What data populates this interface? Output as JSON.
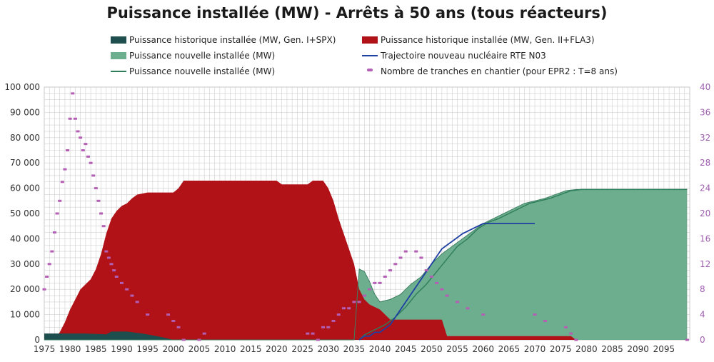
{
  "chart_data": {
    "type": "area",
    "title": "Puissance installée (MW) - Arrêts à 50 ans (tous réacteurs)",
    "legend_position": "top",
    "x_ticks": [
      1975,
      1980,
      1985,
      1990,
      1995,
      2000,
      2005,
      2010,
      2015,
      2020,
      2025,
      2030,
      2035,
      2040,
      2045,
      2050,
      2055,
      2060,
      2065,
      2070,
      2075,
      2080,
      2085,
      2090,
      2095
    ],
    "x_range": [
      1975,
      2100
    ],
    "y_left": {
      "range": [
        0,
        100000
      ],
      "ticks": [
        "0",
        "10 000",
        "20 000",
        "30 000",
        "40 000",
        "50 000",
        "60 000",
        "70 000",
        "80 000",
        "90 000",
        "100 000"
      ]
    },
    "y_right": {
      "range": [
        0,
        40
      ],
      "ticks": [
        "0",
        "4",
        "8",
        "12",
        "16",
        "20",
        "24",
        "28",
        "32",
        "36",
        "40"
      ]
    },
    "grid": true,
    "series": [
      {
        "name": "Puissance historique installée (MW, Gen. I+SPX)",
        "kind": "area",
        "axis": "left",
        "color": "#1f4e4e",
        "points": [
          [
            1975,
            2500
          ],
          [
            1983,
            2500
          ],
          [
            1987,
            2200
          ],
          [
            1988,
            3300
          ],
          [
            1991,
            3300
          ],
          [
            1994,
            2500
          ],
          [
            1996,
            1800
          ],
          [
            1998,
            1000
          ],
          [
            1999,
            500
          ],
          [
            2000,
            0
          ]
        ]
      },
      {
        "name": "Puissance historique installée (MW, Gen. II+FLA3)",
        "kind": "area",
        "axis": "left",
        "color": "#b01218",
        "points": [
          [
            1975,
            0
          ],
          [
            1977,
            500
          ],
          [
            1978,
            3000
          ],
          [
            1979,
            7000
          ],
          [
            1980,
            12000
          ],
          [
            1981,
            16000
          ],
          [
            1982,
            20000
          ],
          [
            1983,
            22000
          ],
          [
            1984,
            24000
          ],
          [
            1985,
            28000
          ],
          [
            1986,
            34000
          ],
          [
            1987,
            42000
          ],
          [
            1988,
            48000
          ],
          [
            1989,
            51000
          ],
          [
            1990,
            53000
          ],
          [
            1991,
            54000
          ],
          [
            1992,
            56000
          ],
          [
            1993,
            57500
          ],
          [
            1995,
            58300
          ],
          [
            2000,
            58300
          ],
          [
            2001,
            60000
          ],
          [
            2002,
            63000
          ],
          [
            2020,
            63000
          ],
          [
            2021,
            61500
          ],
          [
            2026,
            61500
          ],
          [
            2027,
            63000
          ],
          [
            2029,
            63000
          ],
          [
            2030,
            60000
          ],
          [
            2031,
            55000
          ],
          [
            2032,
            48000
          ],
          [
            2033,
            42000
          ],
          [
            2034,
            36000
          ],
          [
            2035,
            30000
          ],
          [
            2036,
            20000
          ],
          [
            2037,
            16000
          ],
          [
            2038,
            14000
          ],
          [
            2040,
            12000
          ],
          [
            2042,
            8000
          ],
          [
            2052,
            8000
          ],
          [
            2053,
            1500
          ],
          [
            2077,
            1500
          ],
          [
            2078,
            0
          ],
          [
            2100,
            0
          ]
        ]
      },
      {
        "name": "Puissance nouvelle installée (MW)",
        "kind": "area",
        "axis": "left",
        "color": "#6dae8e",
        "points": [
          [
            1975,
            0
          ],
          [
            2035,
            0
          ],
          [
            2036,
            28000
          ],
          [
            2037,
            27000
          ],
          [
            2038,
            23000
          ],
          [
            2039,
            18000
          ],
          [
            2040,
            15000
          ],
          [
            2042,
            16000
          ],
          [
            2044,
            18000
          ],
          [
            2046,
            22000
          ],
          [
            2048,
            25000
          ],
          [
            2050,
            30000
          ],
          [
            2052,
            34000
          ],
          [
            2054,
            37000
          ],
          [
            2056,
            40000
          ],
          [
            2058,
            43000
          ],
          [
            2060,
            46000
          ],
          [
            2062,
            48000
          ],
          [
            2064,
            50000
          ],
          [
            2066,
            52000
          ],
          [
            2068,
            54000
          ],
          [
            2070,
            55000
          ],
          [
            2072,
            56000
          ],
          [
            2074,
            57500
          ],
          [
            2076,
            59000
          ],
          [
            2078,
            59500
          ],
          [
            2099.5,
            59500
          ]
        ]
      },
      {
        "name": "Puissance nouvelle installée (MW)",
        "kind": "line",
        "axis": "left",
        "color": "#2e7d5b",
        "points": [
          [
            2036,
            0
          ],
          [
            2037,
            2000
          ],
          [
            2039,
            4000
          ],
          [
            2041,
            6000
          ],
          [
            2043,
            9000
          ],
          [
            2045,
            13000
          ],
          [
            2047,
            18000
          ],
          [
            2049,
            22000
          ],
          [
            2051,
            27000
          ],
          [
            2053,
            32000
          ],
          [
            2055,
            37000
          ],
          [
            2057,
            40000
          ],
          [
            2059,
            44000
          ],
          [
            2061,
            46500
          ],
          [
            2063,
            48000
          ],
          [
            2065,
            50000
          ],
          [
            2067,
            52000
          ],
          [
            2069,
            54000
          ],
          [
            2071,
            55000
          ],
          [
            2073,
            56000
          ],
          [
            2075,
            57500
          ],
          [
            2077,
            59000
          ],
          [
            2079,
            59500
          ],
          [
            2099.5,
            59500
          ]
        ]
      },
      {
        "name": "Trajectoire nouveau nucléaire RTE N03",
        "kind": "line",
        "axis": "left",
        "color": "#1f3fa3",
        "points": [
          [
            2036,
            0
          ],
          [
            2037,
            1500
          ],
          [
            2038,
            1500
          ],
          [
            2039,
            3000
          ],
          [
            2040,
            3000
          ],
          [
            2041,
            4500
          ],
          [
            2042,
            6000
          ],
          [
            2043,
            9000
          ],
          [
            2044,
            12000
          ],
          [
            2045,
            15000
          ],
          [
            2046,
            18000
          ],
          [
            2047,
            21000
          ],
          [
            2048,
            24000
          ],
          [
            2049,
            27000
          ],
          [
            2050,
            30000
          ],
          [
            2051,
            33000
          ],
          [
            2052,
            36000
          ],
          [
            2053,
            37500
          ],
          [
            2054,
            39000
          ],
          [
            2056,
            42000
          ],
          [
            2058,
            44000
          ],
          [
            2060,
            46000
          ],
          [
            2062,
            46000
          ],
          [
            2070,
            46000
          ]
        ]
      },
      {
        "name": "Nombre de tranches en chantier (pour EPR2 : T=8 ans)",
        "kind": "markers",
        "axis": "right",
        "color": "#b35fb3",
        "points": [
          [
            1975,
            8
          ],
          [
            1975.5,
            10
          ],
          [
            1976,
            12
          ],
          [
            1976.5,
            14
          ],
          [
            1977,
            17
          ],
          [
            1977.5,
            20
          ],
          [
            1978,
            22
          ],
          [
            1978.5,
            25
          ],
          [
            1979,
            27
          ],
          [
            1979.5,
            30
          ],
          [
            1980,
            35
          ],
          [
            1980.5,
            39
          ],
          [
            1981,
            35
          ],
          [
            1981.5,
            33
          ],
          [
            1982,
            32
          ],
          [
            1982.5,
            30
          ],
          [
            1983,
            31
          ],
          [
            1983.5,
            29
          ],
          [
            1984,
            28
          ],
          [
            1984.5,
            26
          ],
          [
            1985,
            24
          ],
          [
            1985.5,
            22
          ],
          [
            1986,
            20
          ],
          [
            1986.5,
            18
          ],
          [
            1987,
            14
          ],
          [
            1987.5,
            13
          ],
          [
            1988,
            12
          ],
          [
            1988.5,
            11
          ],
          [
            1989,
            10
          ],
          [
            1990,
            9
          ],
          [
            1991,
            8
          ],
          [
            1992,
            7
          ],
          [
            1993,
            6
          ],
          [
            1995,
            4
          ],
          [
            1999,
            4
          ],
          [
            2000,
            3
          ],
          [
            2001,
            2
          ],
          [
            2002,
            0
          ],
          [
            2005,
            0
          ],
          [
            2006,
            1
          ],
          [
            2026,
            1
          ],
          [
            2027,
            1
          ],
          [
            2028,
            0
          ],
          [
            2029,
            2
          ],
          [
            2030,
            2
          ],
          [
            2031,
            3
          ],
          [
            2032,
            4
          ],
          [
            2033,
            5
          ],
          [
            2034,
            5
          ],
          [
            2035,
            6
          ],
          [
            2036,
            6
          ],
          [
            2037,
            7
          ],
          [
            2038,
            8
          ],
          [
            2039,
            9
          ],
          [
            2040,
            9
          ],
          [
            2041,
            10
          ],
          [
            2042,
            11
          ],
          [
            2043,
            12
          ],
          [
            2044,
            13
          ],
          [
            2045,
            14
          ],
          [
            2047,
            14
          ],
          [
            2048,
            13
          ],
          [
            2049,
            11
          ],
          [
            2050,
            10
          ],
          [
            2051,
            9
          ],
          [
            2052,
            8
          ],
          [
            2053,
            7
          ],
          [
            2055,
            6
          ],
          [
            2057,
            5
          ],
          [
            2060,
            4
          ],
          [
            2070,
            4
          ],
          [
            2072,
            3
          ],
          [
            2076,
            2
          ],
          [
            2077,
            1
          ],
          [
            2078,
            0
          ],
          [
            2099.5,
            0
          ]
        ]
      }
    ]
  }
}
